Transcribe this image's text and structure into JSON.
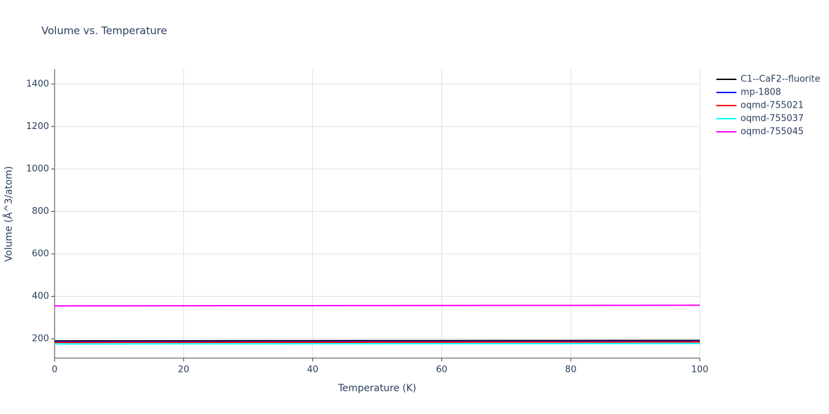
{
  "chart_data": {
    "type": "line",
    "title": "Volume vs. Temperature",
    "x_label": "Temperature (K)",
    "y_label": "Volume (Å^3/atom)",
    "x": [
      0,
      10,
      20,
      30,
      40,
      50,
      60,
      70,
      80,
      90,
      100
    ],
    "series": [
      {
        "name": "C1--CaF2--fluorite",
        "color": "#000000",
        "values": [
          190,
          190.2,
          190.4,
          190.6,
          190.8,
          191,
          191.2,
          191.4,
          191.6,
          191.8,
          192
        ]
      },
      {
        "name": "mp-1808",
        "color": "#0000ff",
        "values": [
          186,
          186.2,
          186.4,
          186.6,
          186.8,
          187,
          187.2,
          187.4,
          187.6,
          187.8,
          188
        ]
      },
      {
        "name": "oqmd-755021",
        "color": "#ff0000",
        "values": [
          183,
          183.2,
          183.4,
          183.6,
          183.8,
          184,
          184.2,
          184.4,
          184.6,
          184.8,
          185
        ]
      },
      {
        "name": "oqmd-755037",
        "color": "#00ffff",
        "values": [
          176,
          176.2,
          176.4,
          176.6,
          176.8,
          177,
          177.2,
          177.4,
          177.6,
          177.8,
          178
        ]
      },
      {
        "name": "oqmd-755045",
        "color": "#ff00ff",
        "values": [
          355,
          355.3,
          355.6,
          355.9,
          356.2,
          356.5,
          356.8,
          357.1,
          357.4,
          357.7,
          358
        ]
      }
    ],
    "xlim": [
      0,
      100
    ],
    "xticks": [
      0,
      20,
      40,
      60,
      80,
      100
    ],
    "ylim": [
      109,
      1471
    ],
    "yticks": [
      200,
      400,
      600,
      800,
      1000,
      1200,
      1400
    ],
    "grid": true
  }
}
